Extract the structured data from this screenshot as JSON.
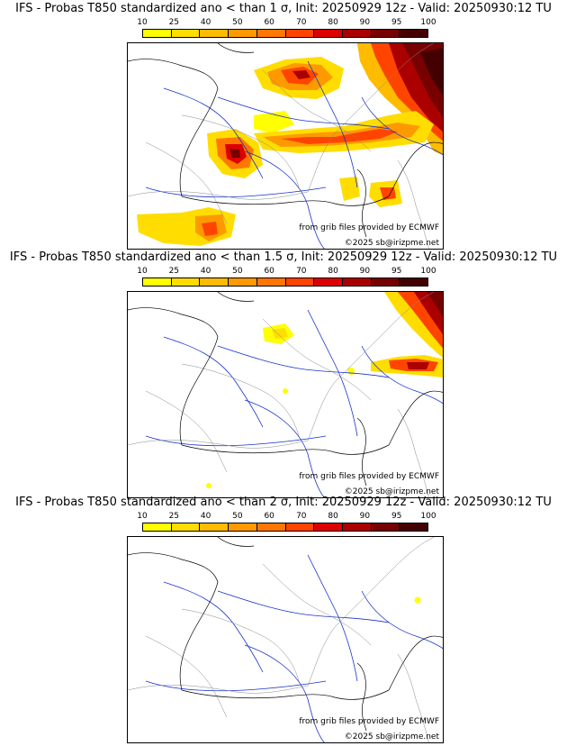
{
  "colors": {
    "scale": [
      "#ffff00",
      "#ffdd00",
      "#ffbb00",
      "#ff9900",
      "#ff7700",
      "#ff4400",
      "#dd0000",
      "#aa0000",
      "#770000",
      "#440000"
    ],
    "rivers": "#1a33cc",
    "borders": "#888888",
    "coast": "#000000"
  },
  "scale": {
    "ticks": [
      "10",
      "25",
      "40",
      "50",
      "60",
      "70",
      "80",
      "90",
      "95",
      "100"
    ]
  },
  "panels": [
    {
      "title": "IFS - Probas T850  standardized ano < than 1 σ, Init: 20250929 12z - Valid: 20250930:12 TU",
      "source_credit": "from grib files provided by ECMWF",
      "copyright": "©2025 sb@irizpme.net"
    },
    {
      "title": "IFS - Probas T850  standardized ano < than 1.5 σ, Init: 20250929 12z - Valid: 20250930:12 TU",
      "source_credit": "from grib files provided by ECMWF",
      "copyright": "©2025 sb@irizpme.net"
    },
    {
      "title": "IFS - Probas T850  standardized ano < than 2 σ, Init: 20250929 12z - Valid: 20250930:12 TU",
      "source_credit": "from grib files provided by ECMWF",
      "copyright": "©2025 sb@irizpme.net"
    }
  ]
}
